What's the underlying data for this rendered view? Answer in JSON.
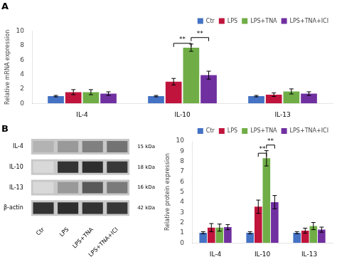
{
  "chart_data": [
    {
      "type": "bar",
      "title": "A",
      "categories": [
        "IL-4",
        "IL-10",
        "IL-13"
      ],
      "series": [
        {
          "name": "Ctr",
          "color": "#4472C4",
          "values": [
            1.0,
            1.0,
            1.0
          ],
          "errors": [
            0.1,
            0.1,
            0.1
          ]
        },
        {
          "name": "LPS",
          "color": "#C0143C",
          "values": [
            1.55,
            3.0,
            1.2
          ],
          "errors": [
            0.35,
            0.45,
            0.25
          ]
        },
        {
          "name": "LPS+TNA",
          "color": "#70AD47",
          "values": [
            1.55,
            7.7,
            1.65
          ],
          "errors": [
            0.35,
            0.5,
            0.35
          ]
        },
        {
          "name": "LPS+TNA+ICI",
          "color": "#7030A0",
          "values": [
            1.35,
            3.9,
            1.35
          ],
          "errors": [
            0.25,
            0.55,
            0.25
          ]
        }
      ],
      "ylabel": "Relative mRNA expression",
      "ylim": [
        0,
        10
      ],
      "yticks": [
        0,
        2,
        4,
        6,
        8,
        10
      ],
      "grid": false,
      "legend": "upper right",
      "annotations": [
        {
          "text": "**",
          "category": "IL-10",
          "from": "LPS",
          "to": "LPS+TNA",
          "y": 8.3
        },
        {
          "text": "**",
          "category": "IL-10",
          "from": "LPS+TNA",
          "to": "LPS+TNA+ICI",
          "y": 9.1
        }
      ]
    },
    {
      "type": "blot",
      "title": "B",
      "categories": [
        "Ctr",
        "LPS",
        "LPS+TNA",
        "LPS+TNA+ICI"
      ],
      "y_categories": [
        "IL-4",
        "IL-10",
        "IL-13",
        "β-actin"
      ],
      "y2_categories": [
        "15 kDa",
        "18 kDa",
        "16 kDa",
        "42 kDa"
      ],
      "cells": [
        [
          0.3,
          0.4,
          0.5,
          0.55
        ],
        [
          0.15,
          0.8,
          0.82,
          0.78
        ],
        [
          0.15,
          0.4,
          0.65,
          0.52
        ],
        [
          0.8,
          0.82,
          0.8,
          0.78
        ]
      ],
      "grid": false
    },
    {
      "type": "bar",
      "categories": [
        "IL-4",
        "IL-10",
        "IL-13"
      ],
      "series": [
        {
          "name": "Ctr",
          "color": "#4472C4",
          "values": [
            1.0,
            1.0,
            1.0
          ],
          "errors": [
            0.1,
            0.1,
            0.1
          ]
        },
        {
          "name": "LPS",
          "color": "#C0143C",
          "values": [
            1.5,
            3.55,
            1.2
          ],
          "errors": [
            0.4,
            0.65,
            0.25
          ]
        },
        {
          "name": "LPS+TNA",
          "color": "#70AD47",
          "values": [
            1.5,
            8.3,
            1.65
          ],
          "errors": [
            0.35,
            0.75,
            0.35
          ]
        },
        {
          "name": "LPS+TNA+ICI",
          "color": "#7030A0",
          "values": [
            1.55,
            4.0,
            1.3
          ],
          "errors": [
            0.25,
            0.65,
            0.25
          ]
        }
      ],
      "ylabel": "Relative protein expression",
      "ylim": [
        0,
        10
      ],
      "yticks": [
        0,
        1,
        2,
        3,
        4,
        5,
        6,
        7,
        8,
        9,
        10
      ],
      "grid": false,
      "legend": "upper right",
      "annotations": [
        {
          "text": "**",
          "category": "IL-10",
          "from": "LPS",
          "to": "LPS+TNA",
          "y": 8.8
        },
        {
          "text": "**",
          "category": "IL-10",
          "from": "LPS+TNA",
          "to": "LPS+TNA+ICI",
          "y": 9.6
        }
      ]
    }
  ]
}
